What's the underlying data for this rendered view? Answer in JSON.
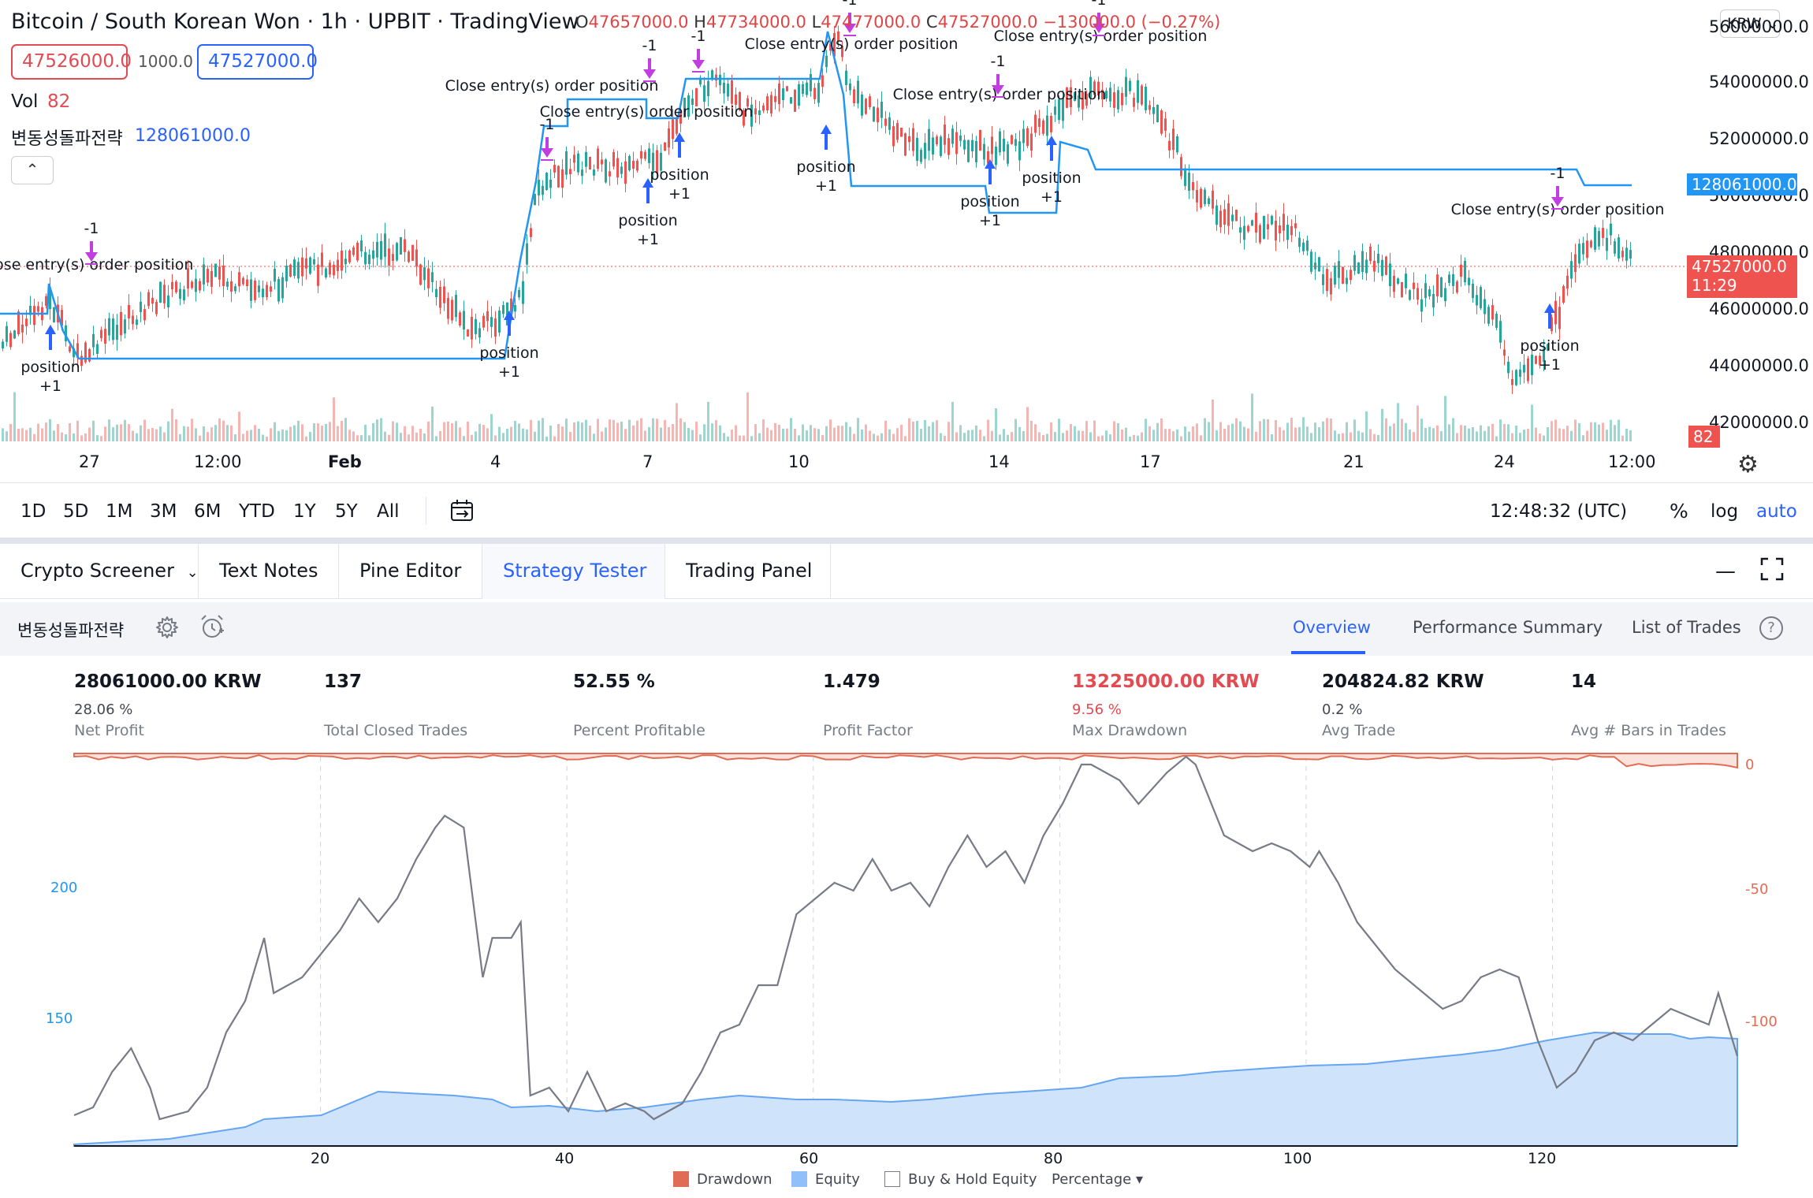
{
  "header": {
    "symbol_title": "Bitcoin / South Korean Won · 1h · UPBIT · TradingView",
    "ohlc": {
      "o_label": "O",
      "o": "47657000.0",
      "h_label": "H",
      "h": "47734000.0",
      "l_label": "L",
      "l": "47477000.0",
      "c_label": "C",
      "c": "47527000.0",
      "change": "−130000.0 (−0.27%)"
    },
    "bid": "47526000.0",
    "spread": "1000.0",
    "ask": "47527000.0",
    "vol_label": "Vol",
    "vol_value": "82",
    "strategy_label": "변동성돌파전략",
    "strategy_value": "128061000.0",
    "collapse_glyph": "⌃",
    "currency": "KRW"
  },
  "price_axis": {
    "labels": [
      "56000000.0",
      "54000000.0",
      "52000000.0",
      "50000000.0",
      "48000000.0",
      "46000000.0",
      "44000000.0",
      "42000000.0"
    ],
    "strategy_tag": "128061000.0",
    "last_price_tag": "47527000.0",
    "countdown": "11:29",
    "volume_tag": "82"
  },
  "chart_annotations": {
    "close_label": "Close entry(s) order position",
    "entry_label": "position",
    "plus_one": "+1",
    "minus_one": "-1"
  },
  "x_axis": {
    "ticks": [
      "27",
      "12:00",
      "Feb",
      "4",
      "7",
      "10",
      "14",
      "17",
      "21",
      "24",
      "12:00"
    ]
  },
  "toolbar": {
    "ranges": [
      "1D",
      "5D",
      "1M",
      "3M",
      "6M",
      "YTD",
      "1Y",
      "5Y",
      "All"
    ],
    "clock": "12:48:32 (UTC)",
    "percent": "%",
    "log": "log",
    "auto": "auto"
  },
  "bottom_tabs": [
    "Crypto Screener",
    "Text Notes",
    "Pine Editor",
    "Strategy Tester",
    "Trading Panel"
  ],
  "tester": {
    "strategy_name": "변동성돌파전략",
    "sub_tabs": [
      "Overview",
      "Performance Summary",
      "List of Trades"
    ],
    "help_glyph": "?",
    "metrics": [
      {
        "value": "28061000.00 KRW",
        "sub": "28.06 %",
        "label": "Net Profit"
      },
      {
        "value": "137",
        "sub": "",
        "label": "Total Closed Trades"
      },
      {
        "value": "52.55 %",
        "sub": "",
        "label": "Percent Profitable"
      },
      {
        "value": "1.479",
        "sub": "",
        "label": "Profit Factor"
      },
      {
        "value": "13225000.00 KRW",
        "sub": "9.56 %",
        "label": "Max Drawdown"
      },
      {
        "value": "204824.82 KRW",
        "sub": "0.2 %",
        "label": "Avg Trade"
      },
      {
        "value": "14",
        "sub": "",
        "label": "Avg # Bars in Trades"
      }
    ]
  },
  "equity_chart": {
    "left_axis": [
      "200",
      "150"
    ],
    "right_axis": [
      "0",
      "-50",
      "-100"
    ],
    "x_ticks": [
      "20",
      "40",
      "60",
      "80",
      "100",
      "120"
    ],
    "legend": {
      "drawdown": "Drawdown",
      "equity": "Equity",
      "buy_hold": "Buy & Hold Equity",
      "mode": "Percentage"
    },
    "colors": {
      "drawdown": "#e06c55",
      "equity": "#90bff9",
      "buy_hold": "#787b86"
    }
  },
  "colors": {
    "accent": "#2962ff",
    "up": "#26a69a",
    "down": "#ef5350",
    "strategy": "#2196f3"
  }
}
